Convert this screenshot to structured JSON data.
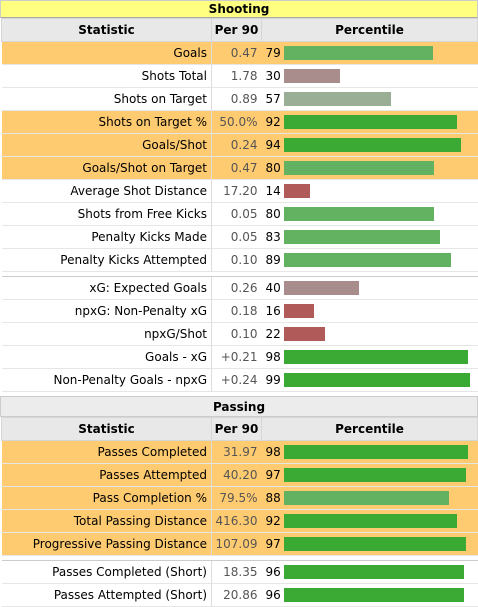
{
  "shooting": {
    "title": "Shooting",
    "headers": {
      "stat": "Statistic",
      "per90": "Per 90",
      "pct": "Percentile"
    },
    "groups": [
      [
        {
          "name": "Goals",
          "per90": "0.47",
          "pct": 79,
          "hl": true
        },
        {
          "name": "Shots Total",
          "per90": "1.78",
          "pct": 30,
          "hl": false
        },
        {
          "name": "Shots on Target",
          "per90": "0.89",
          "pct": 57,
          "hl": false
        },
        {
          "name": "Shots on Target %",
          "per90": "50.0%",
          "pct": 92,
          "hl": true
        },
        {
          "name": "Goals/Shot",
          "per90": "0.24",
          "pct": 94,
          "hl": true
        },
        {
          "name": "Goals/Shot on Target",
          "per90": "0.47",
          "pct": 80,
          "hl": true
        },
        {
          "name": "Average Shot Distance",
          "per90": "17.20",
          "pct": 14,
          "hl": false
        },
        {
          "name": "Shots from Free Kicks",
          "per90": "0.05",
          "pct": 80,
          "hl": false
        },
        {
          "name": "Penalty Kicks Made",
          "per90": "0.05",
          "pct": 83,
          "hl": false
        },
        {
          "name": "Penalty Kicks Attempted",
          "per90": "0.10",
          "pct": 89,
          "hl": false
        }
      ],
      [
        {
          "name": "xG: Expected Goals",
          "per90": "0.26",
          "pct": 40,
          "hl": false
        },
        {
          "name": "npxG: Non-Penalty xG",
          "per90": "0.18",
          "pct": 16,
          "hl": false
        },
        {
          "name": "npxG/Shot",
          "per90": "0.10",
          "pct": 22,
          "hl": false
        },
        {
          "name": "Goals - xG",
          "per90": "+0.21",
          "pct": 98,
          "hl": false
        },
        {
          "name": "Non-Penalty Goals - npxG",
          "per90": "+0.24",
          "pct": 99,
          "hl": false
        }
      ]
    ]
  },
  "passing": {
    "title": "Passing",
    "headers": {
      "stat": "Statistic",
      "per90": "Per 90",
      "pct": "Percentile"
    },
    "groups": [
      [
        {
          "name": "Passes Completed",
          "per90": "31.97",
          "pct": 98,
          "hl": true
        },
        {
          "name": "Passes Attempted",
          "per90": "40.20",
          "pct": 97,
          "hl": true
        },
        {
          "name": "Pass Completion %",
          "per90": "79.5%",
          "pct": 88,
          "hl": true
        },
        {
          "name": "Total Passing Distance",
          "per90": "416.30",
          "pct": 92,
          "hl": true
        },
        {
          "name": "Progressive Passing Distance",
          "per90": "107.09",
          "pct": 97,
          "hl": true
        }
      ],
      [
        {
          "name": "Passes Completed (Short)",
          "per90": "18.35",
          "pct": 96,
          "hl": false
        },
        {
          "name": "Passes Attempted (Short)",
          "per90": "20.86",
          "pct": 96,
          "hl": false
        }
      ]
    ]
  },
  "colors": {
    "high": "#3aaa35",
    "mid_high": "#62b262",
    "mid": "#9aae95",
    "mid_low": "#a98d8d",
    "low": "#b05a5a"
  }
}
